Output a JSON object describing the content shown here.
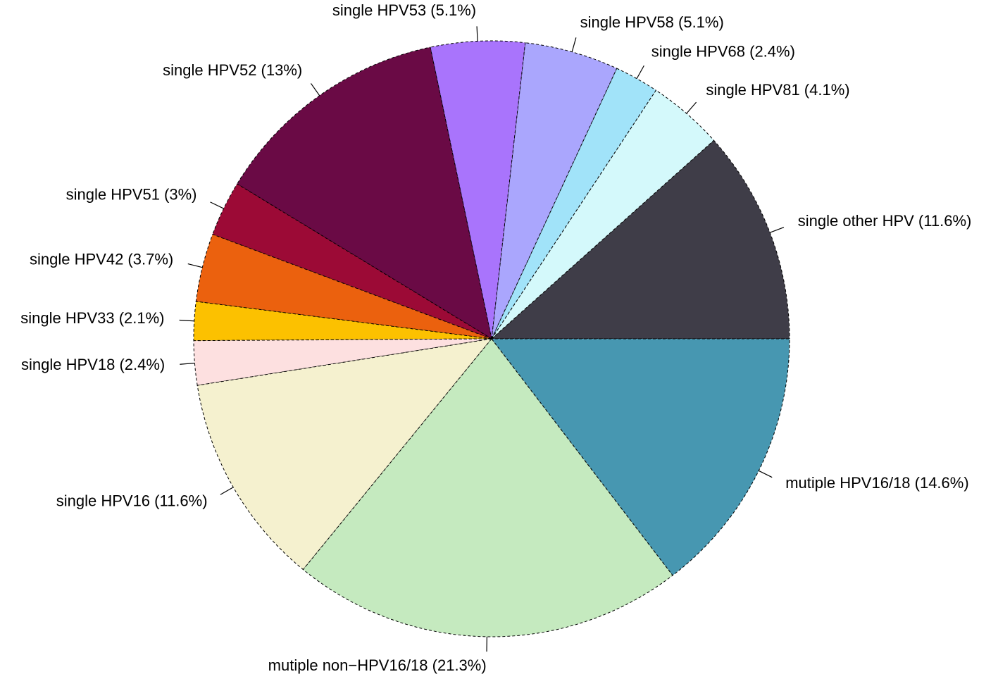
{
  "chart_data": {
    "type": "pie",
    "categories": [
      "single other HPV (11.6%)",
      "single HPV81 (4.1%)",
      "single HPV68 (2.4%)",
      "single HPV58 (5.1%)",
      "single HPV53 (5.1%)",
      "single HPV52 (13%)",
      "single HPV51 (3%)",
      "single HPV42 (3.7%)",
      "single HPV33 (2.1%)",
      "single HPV18 (2.4%)",
      "single HPV16 (11.6%)",
      "mutiple non−HPV16/18 (21.3%)",
      "mutiple HPV16/18 (14.6%)"
    ],
    "values": [
      11.6,
      4.1,
      2.4,
      5.1,
      5.1,
      13,
      3,
      3.7,
      2.1,
      2.4,
      11.6,
      21.3,
      14.6
    ],
    "colors": [
      "#3f3d48",
      "#d4f9fb",
      "#a1e3f9",
      "#aaa6fd",
      "#a974fc",
      "#6a0a45",
      "#9c0a36",
      "#eb610e",
      "#fcc100",
      "#fde0e0",
      "#f5f1cf",
      "#c5eabf",
      "#4797b1"
    ]
  }
}
